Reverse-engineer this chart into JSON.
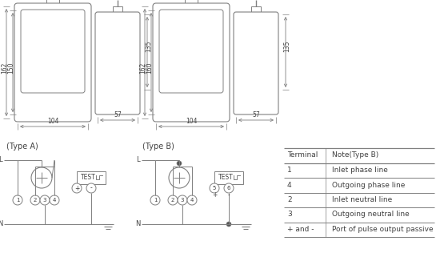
{
  "bg_color": "#ffffff",
  "line_color": "#808080",
  "text_color": "#404040",
  "table_headers": [
    "Terminal",
    "Note(Type B)"
  ],
  "table_rows": [
    [
      "1",
      "Inlet phase line"
    ],
    [
      "4",
      "Outgoing phase line"
    ],
    [
      "2",
      "Inlet neutral line"
    ],
    [
      "3",
      "Outgoing neutral line"
    ],
    [
      "+ and -",
      "Port of pulse output passive"
    ]
  ],
  "type_a_label": "(Type A)",
  "type_b_label": "(Type B)",
  "dims": {
    "h162": "162",
    "h150": "150",
    "h135": "135",
    "w104": "104",
    "w57": "57",
    "h160": "160"
  }
}
